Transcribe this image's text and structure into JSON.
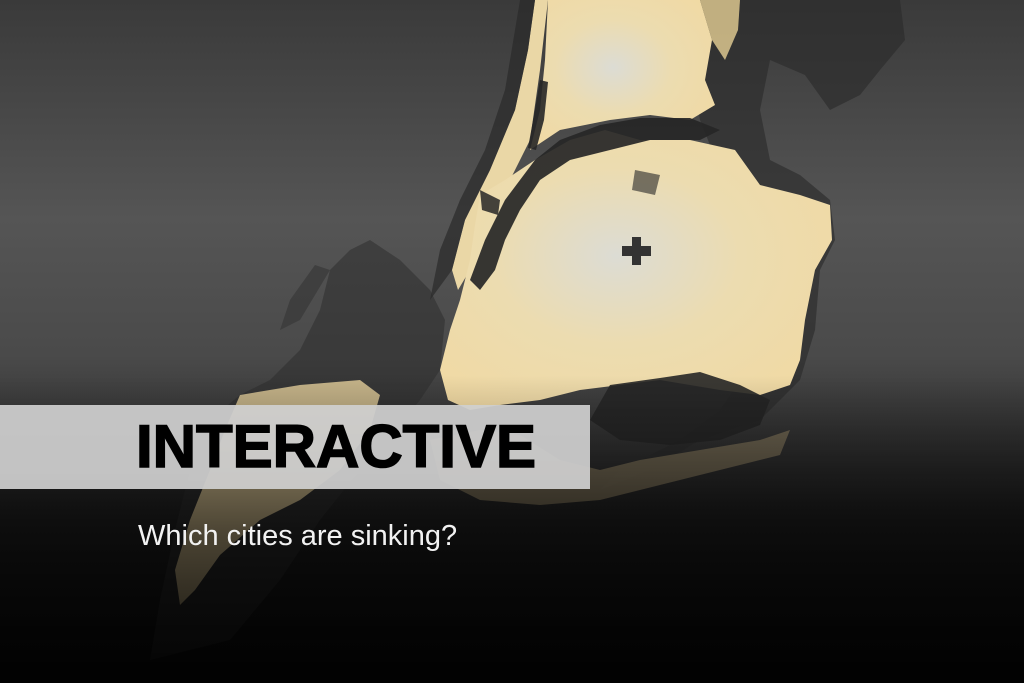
{
  "banner": {
    "label": "INTERACTIVE"
  },
  "headline": {
    "text": "Which cities are sinking?"
  },
  "map": {
    "marker_icon": "plus-icon",
    "colors": {
      "land_light": "#f2dca6",
      "land_pale": "#e6e2d2",
      "water": "#262626",
      "surround": "#4d4d4d",
      "marker": "#333333"
    }
  }
}
